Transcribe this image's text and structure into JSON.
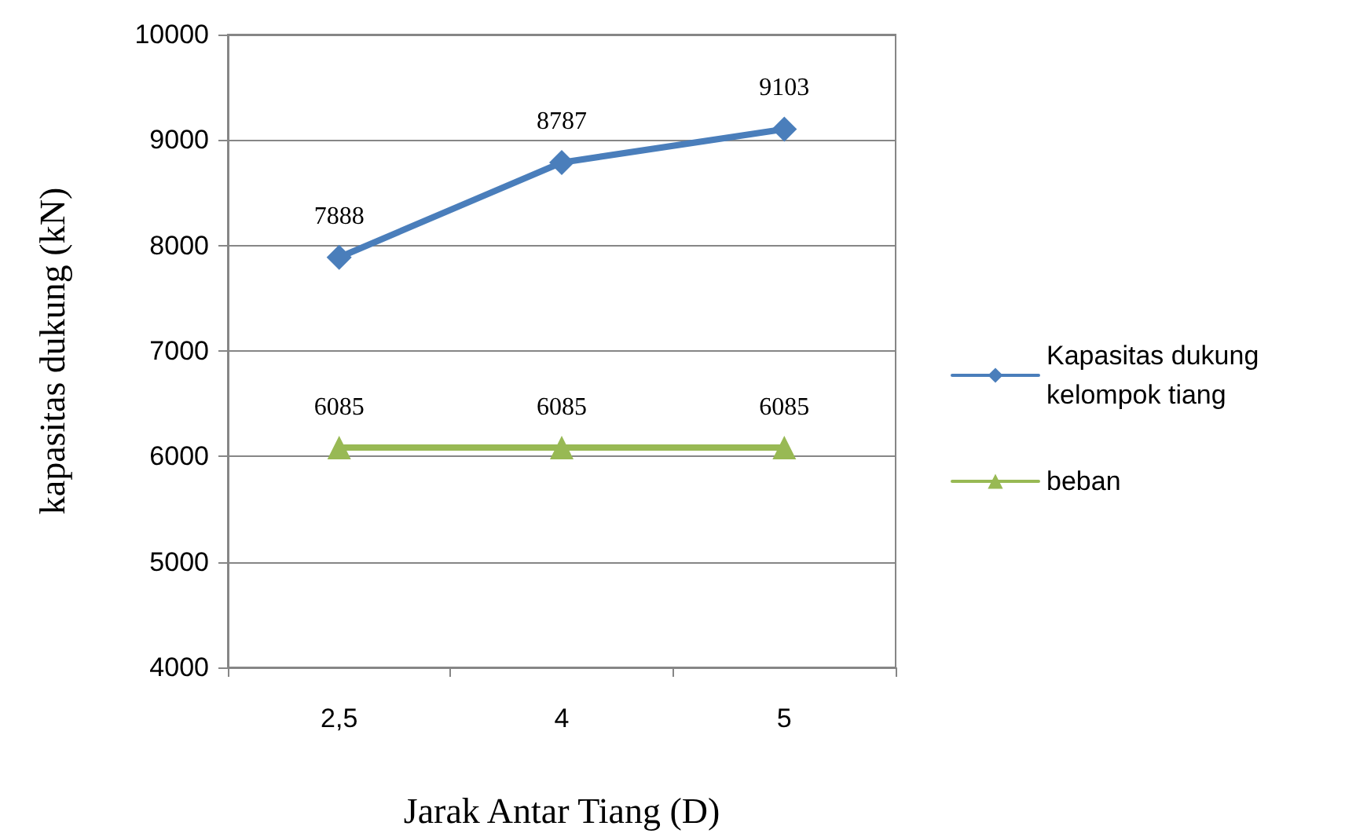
{
  "chart_data": {
    "type": "line",
    "xlabel": "Jarak Antar Tiang (D)",
    "ylabel": "kapasitas dukung (kN)",
    "categories": [
      "2,5",
      "4",
      "5"
    ],
    "series": [
      {
        "name": "Kapasitas dukung kelompok tiang",
        "color": "#4a7ebb",
        "values": [
          7888,
          8787,
          9103
        ],
        "marker": "diamond"
      },
      {
        "name": "beban",
        "color": "#98b954",
        "values": [
          6085,
          6085,
          6085
        ],
        "marker": "triangle"
      }
    ],
    "ylim": [
      4000,
      10000
    ],
    "yticks": [
      4000,
      5000,
      6000,
      7000,
      8000,
      9000,
      10000
    ],
    "grid": "y",
    "legend": "right",
    "data_labels": true,
    "line_style": "solid"
  }
}
